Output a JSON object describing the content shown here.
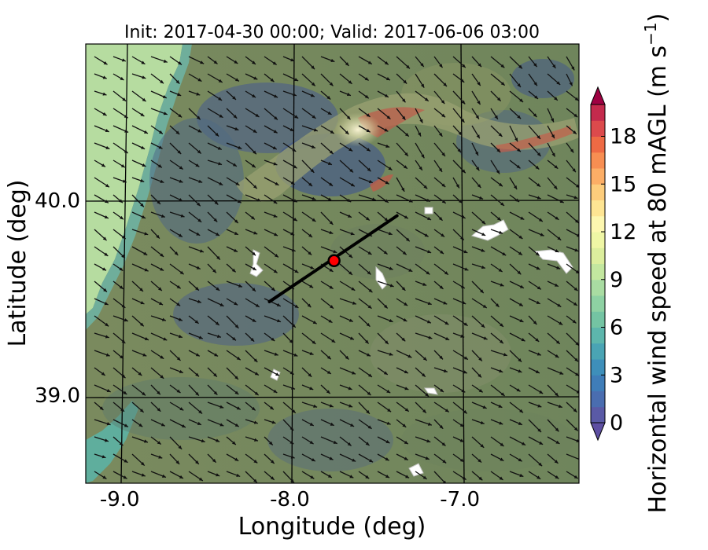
{
  "chart_data": {
    "type": "heatmap",
    "title": "Init: 2017-04-30 00:00; Valid: 2017-06-06 03:00",
    "xlabel": "Longitude (deg)",
    "ylabel": "Latitude (deg)",
    "xlim": [
      -9.2,
      -6.3
    ],
    "ylim": [
      38.55,
      40.8
    ],
    "x_ticks": [
      -9.0,
      -8.0,
      -7.0
    ],
    "x_tick_labels": [
      "-9.0",
      "-8.0",
      "-7.0"
    ],
    "y_ticks": [
      39.0,
      40.0
    ],
    "y_tick_labels": [
      "39.0",
      "40.0"
    ],
    "grid": true,
    "colorbar": {
      "label": "Horizontal wind speed at 80 mAGL (m s",
      "label_sup": "−1",
      "label_end": ")",
      "min": 0,
      "max": 20,
      "step": 1,
      "extend": "both",
      "ticks": [
        0,
        3,
        6,
        9,
        12,
        15,
        18
      ],
      "tick_labels": [
        "0",
        "3",
        "6",
        "9",
        "12",
        "15",
        "18"
      ],
      "colors": [
        "#5e4fa2",
        "#5a5aa6",
        "#4a6db0",
        "#3f7db8",
        "#3e8fba",
        "#4aa4b4",
        "#5db6ac",
        "#74c4a3",
        "#8ed1a3",
        "#a9dca2",
        "#c3e79f",
        "#dcee9d",
        "#eff6a5",
        "#fdf7af",
        "#fee593",
        "#fdcd7c",
        "#fcae66",
        "#f78e52",
        "#ee6a44",
        "#dc4a4c",
        "#c42a4d",
        "#9e0142"
      ]
    },
    "transect": {
      "start": {
        "lon": -8.12,
        "lat": 39.48
      },
      "end": {
        "lon": -7.37,
        "lat": 39.92
      },
      "site": {
        "lon": -7.74,
        "lat": 39.69
      }
    }
  }
}
